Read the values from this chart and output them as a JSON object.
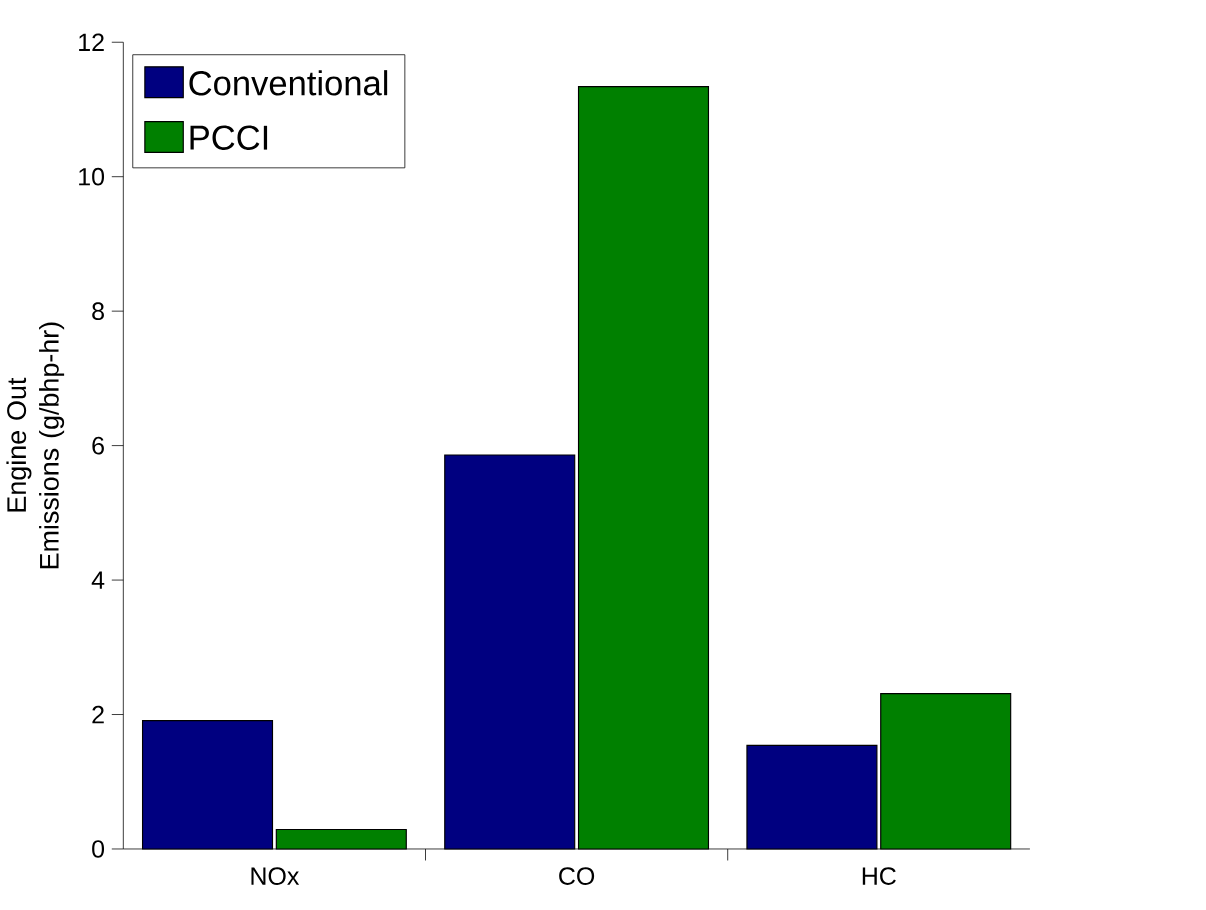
{
  "chart_data": {
    "type": "bar",
    "ylabel": "Engine Out Emissions (g/bhp-hr)",
    "categories": [
      "NOx",
      "CO",
      "HC"
    ],
    "series": [
      {
        "name": "Conventional",
        "color": "#000080",
        "values": [
          1.91,
          5.86,
          1.54
        ]
      },
      {
        "name": "PCCI",
        "color": "#008000",
        "values": [
          0.29,
          11.34,
          2.31
        ]
      }
    ],
    "ylim": [
      0,
      12
    ],
    "yticks": [
      0,
      2,
      4,
      6,
      8,
      10,
      12
    ],
    "grid": false,
    "legend": "top left"
  }
}
